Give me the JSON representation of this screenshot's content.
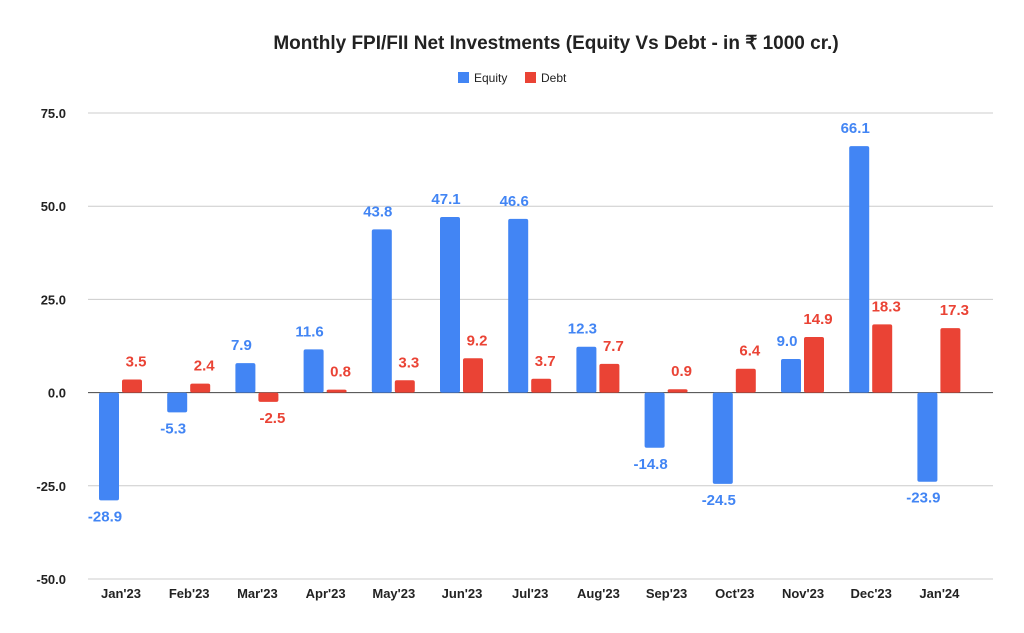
{
  "chart_data": {
    "type": "bar",
    "title": "Monthly FPI/FII Net Investments (Equity Vs Debt - in ₹ 1000 cr.)",
    "categories": [
      "Jan'23",
      "Feb'23",
      "Mar'23",
      "Apr'23",
      "May'23",
      "Jun'23",
      "Jul'23",
      "Aug'23",
      "Sep'23",
      "Oct'23",
      "Nov'23",
      "Dec'23",
      "Jan'24"
    ],
    "series": [
      {
        "name": "Equity",
        "color": "#4285f4",
        "values": [
          -28.9,
          -5.3,
          7.9,
          11.6,
          43.8,
          47.1,
          46.6,
          12.3,
          -14.8,
          -24.5,
          9.0,
          66.1,
          -23.9
        ]
      },
      {
        "name": "Debt",
        "color": "#ea4335",
        "values": [
          3.5,
          2.4,
          -2.5,
          0.8,
          3.3,
          9.2,
          3.7,
          7.7,
          0.9,
          6.4,
          14.9,
          18.3,
          17.3
        ]
      }
    ],
    "yticks": [
      "75.0",
      "50.0",
      "25.0",
      "0.0",
      "-25.0",
      "-50.0"
    ],
    "ylim": [
      -50,
      75
    ],
    "grid": true,
    "legend": "top-center",
    "data_labels": true
  }
}
